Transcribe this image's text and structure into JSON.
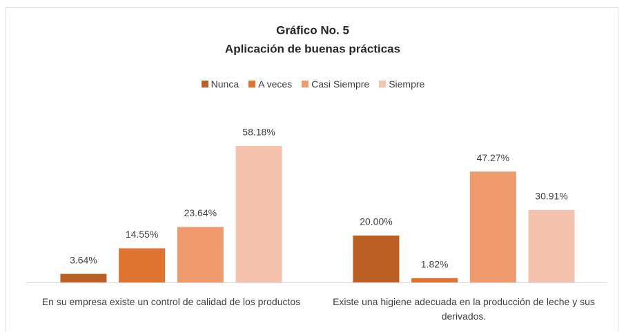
{
  "chart_data": {
    "type": "bar",
    "title": "Gráfico No. 5",
    "subtitle": "Aplicación de buenas prácticas",
    "categories": [
      "En su empresa existe un control de calidad de los productos",
      "Existe una higiene adecuada en la producción de leche y sus derivados."
    ],
    "series": [
      {
        "name": "Nunca",
        "color": "#bc5f25",
        "values": [
          3.64,
          20.0
        ],
        "value_labels": [
          "3.64%",
          "20.00%"
        ]
      },
      {
        "name": "A veces",
        "color": "#de7430",
        "values": [
          14.55,
          1.82
        ],
        "value_labels": [
          "14.55%",
          "1.82%"
        ]
      },
      {
        "name": "Casi Siempre",
        "color": "#f09b6e",
        "values": [
          23.64,
          47.27
        ],
        "value_labels": [
          "23.64%",
          "47.27%"
        ]
      },
      {
        "name": "Siempre",
        "color": "#f5c2ae",
        "values": [
          58.18,
          30.91
        ],
        "value_labels": [
          "58.18%",
          "30.91%"
        ]
      }
    ],
    "legend": "top"
  }
}
